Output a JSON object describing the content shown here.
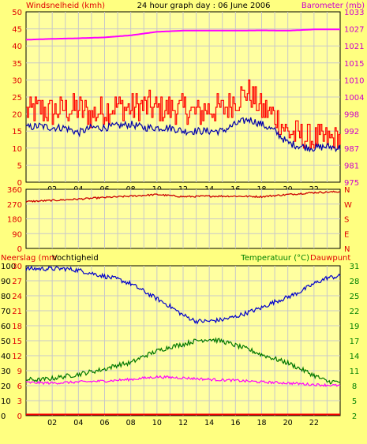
{
  "header": {
    "title": "24 hour graph day : 06 June 2006",
    "left_label": "Windsnelheid (kmh)",
    "right_label": "Barometer (mb)"
  },
  "colors": {
    "background": "#ffff80",
    "plot_bg": "#ffffa0",
    "grid": "#c8c8c8",
    "wind_left": "#e00000",
    "baro_right": "#cc00cc",
    "bottom_right": "#008000",
    "gust": "#ff0000",
    "wind_avg": "#0000aa",
    "pressure": "#ff00ff",
    "direction": "#cc0000",
    "humidity": "#0000cc",
    "temperature": "#007700",
    "dewpoint": "#ff00ff",
    "rain": "#ff0000"
  },
  "x_ticks": [
    "02",
    "04",
    "06",
    "08",
    "10",
    "12",
    "14",
    "16",
    "18",
    "20",
    "22"
  ],
  "chart_data": [
    {
      "type": "line",
      "id": "wind-pressure",
      "title": "24 hour graph day : 06 June 2006",
      "ylabel": "Windsnelheid (kmh)",
      "y2label": "Barometer (mb)",
      "xlim": [
        0,
        24
      ],
      "ylim": [
        0,
        50
      ],
      "y2lim": [
        975,
        1033
      ],
      "yticks": [
        "0",
        "5",
        "10",
        "15",
        "20",
        "25",
        "30",
        "35",
        "40",
        "45",
        "50"
      ],
      "y2ticks": [
        "975",
        "981",
        "987",
        "992",
        "998",
        "1004",
        "1010",
        "1015",
        "1021",
        "1027",
        "1033"
      ],
      "series": [
        {
          "key": "gust",
          "axis": "left",
          "x": [
            0,
            1,
            2,
            3,
            4,
            5,
            6,
            7,
            8,
            9,
            10,
            11,
            12,
            13,
            14,
            15,
            16,
            17,
            18,
            19,
            20,
            21,
            22,
            23,
            24
          ],
          "values": [
            20,
            21,
            20,
            21,
            21,
            19,
            21,
            22,
            21,
            22,
            21,
            21,
            21,
            20,
            21,
            21,
            24,
            26,
            21,
            19,
            14,
            13,
            12,
            12,
            12
          ]
        },
        {
          "key": "avg",
          "axis": "left",
          "x": [
            0,
            1,
            2,
            3,
            4,
            5,
            6,
            7,
            8,
            9,
            10,
            11,
            12,
            13,
            14,
            15,
            16,
            17,
            18,
            19,
            20,
            21,
            22,
            23,
            24
          ],
          "values": [
            16,
            16.5,
            16,
            16,
            14.5,
            16,
            16,
            16.5,
            17,
            16,
            16,
            16,
            15,
            15,
            15,
            15,
            17,
            18.5,
            17,
            15,
            11.5,
            10.5,
            10,
            10.5,
            10
          ]
        },
        {
          "key": "pressure",
          "axis": "right",
          "x": [
            0,
            2,
            4,
            6,
            8,
            10,
            12,
            14,
            16,
            18,
            20,
            22,
            24
          ],
          "values": [
            1023.5,
            1023.8,
            1024.0,
            1024.3,
            1025.0,
            1026.2,
            1026.6,
            1026.6,
            1026.6,
            1026.7,
            1026.6,
            1027.0,
            1027.0
          ]
        }
      ]
    },
    {
      "type": "line",
      "id": "wind-direction",
      "xlim": [
        0,
        24
      ],
      "ylim": [
        0,
        360
      ],
      "yticks": [
        "0",
        "90",
        "180",
        "270",
        "360"
      ],
      "y2ticks": [
        "N",
        "E",
        "S",
        "W",
        "N"
      ],
      "series": [
        {
          "key": "direction",
          "x": [
            0,
            2,
            4,
            6,
            8,
            10,
            12,
            14,
            16,
            18,
            20,
            22,
            24
          ],
          "values": [
            285,
            292,
            300,
            310,
            318,
            328,
            315,
            318,
            318,
            315,
            328,
            340,
            345
          ]
        }
      ]
    },
    {
      "type": "line",
      "id": "temp-humidity",
      "ylabel": "Neerslag (mm",
      "ylabel2": "Vochtigheid",
      "y2label": "Temperatuur (°C)",
      "y2label2": "Dauwpunt",
      "xlim": [
        0,
        24
      ],
      "humidity_lim": [
        0,
        100
      ],
      "temp_lim": [
        2,
        31
      ],
      "humidity_ticks": [
        "0",
        "10",
        "20",
        "30",
        "40",
        "50",
        "60",
        "70",
        "80",
        "90",
        "100"
      ],
      "rain_ticks": [
        "0",
        "3",
        "6",
        "9",
        "12",
        "15",
        "18",
        "21",
        "24",
        "27",
        "30"
      ],
      "temp_ticks": [
        "2",
        "5",
        "8",
        "11",
        "14",
        "17",
        "19",
        "22",
        "25",
        "28",
        "31"
      ],
      "series": [
        {
          "key": "humidity",
          "axis": "left",
          "x": [
            0,
            1,
            2,
            3,
            4,
            5,
            6,
            7,
            8,
            9,
            10,
            11,
            12,
            13,
            14,
            15,
            16,
            17,
            18,
            19,
            20,
            21,
            22,
            23,
            24
          ],
          "values": [
            98,
            98,
            98,
            98,
            97,
            95,
            93,
            91,
            88,
            83,
            78,
            73,
            67,
            63,
            63,
            64,
            66,
            69,
            72,
            76,
            79,
            83,
            88,
            92,
            93
          ]
        },
        {
          "key": "temperature",
          "axis": "right",
          "x": [
            0,
            1,
            2,
            3,
            4,
            5,
            6,
            7,
            8,
            9,
            10,
            11,
            12,
            13,
            14,
            15,
            16,
            17,
            18,
            19,
            20,
            21,
            22,
            23,
            24
          ],
          "values": [
            9.0,
            8.9,
            9.2,
            9.6,
            10.0,
            10.5,
            11.0,
            11.8,
            12.2,
            13.5,
            14.5,
            15.3,
            15.8,
            16.5,
            16.8,
            16.4,
            15.6,
            14.8,
            13.8,
            13.0,
            12.2,
            11.0,
            9.8,
            8.6,
            8.5
          ]
        },
        {
          "key": "dewpoint",
          "axis": "right",
          "x": [
            0,
            2,
            4,
            6,
            8,
            10,
            12,
            14,
            16,
            18,
            20,
            22,
            24
          ],
          "values": [
            8.4,
            8.3,
            8.5,
            8.7,
            9.0,
            9.5,
            9.3,
            9.0,
            8.8,
            8.5,
            8.3,
            8.0,
            7.8
          ]
        },
        {
          "key": "rain",
          "axis": "rain",
          "x": [
            0,
            24
          ],
          "values": [
            0,
            0
          ]
        }
      ]
    }
  ]
}
